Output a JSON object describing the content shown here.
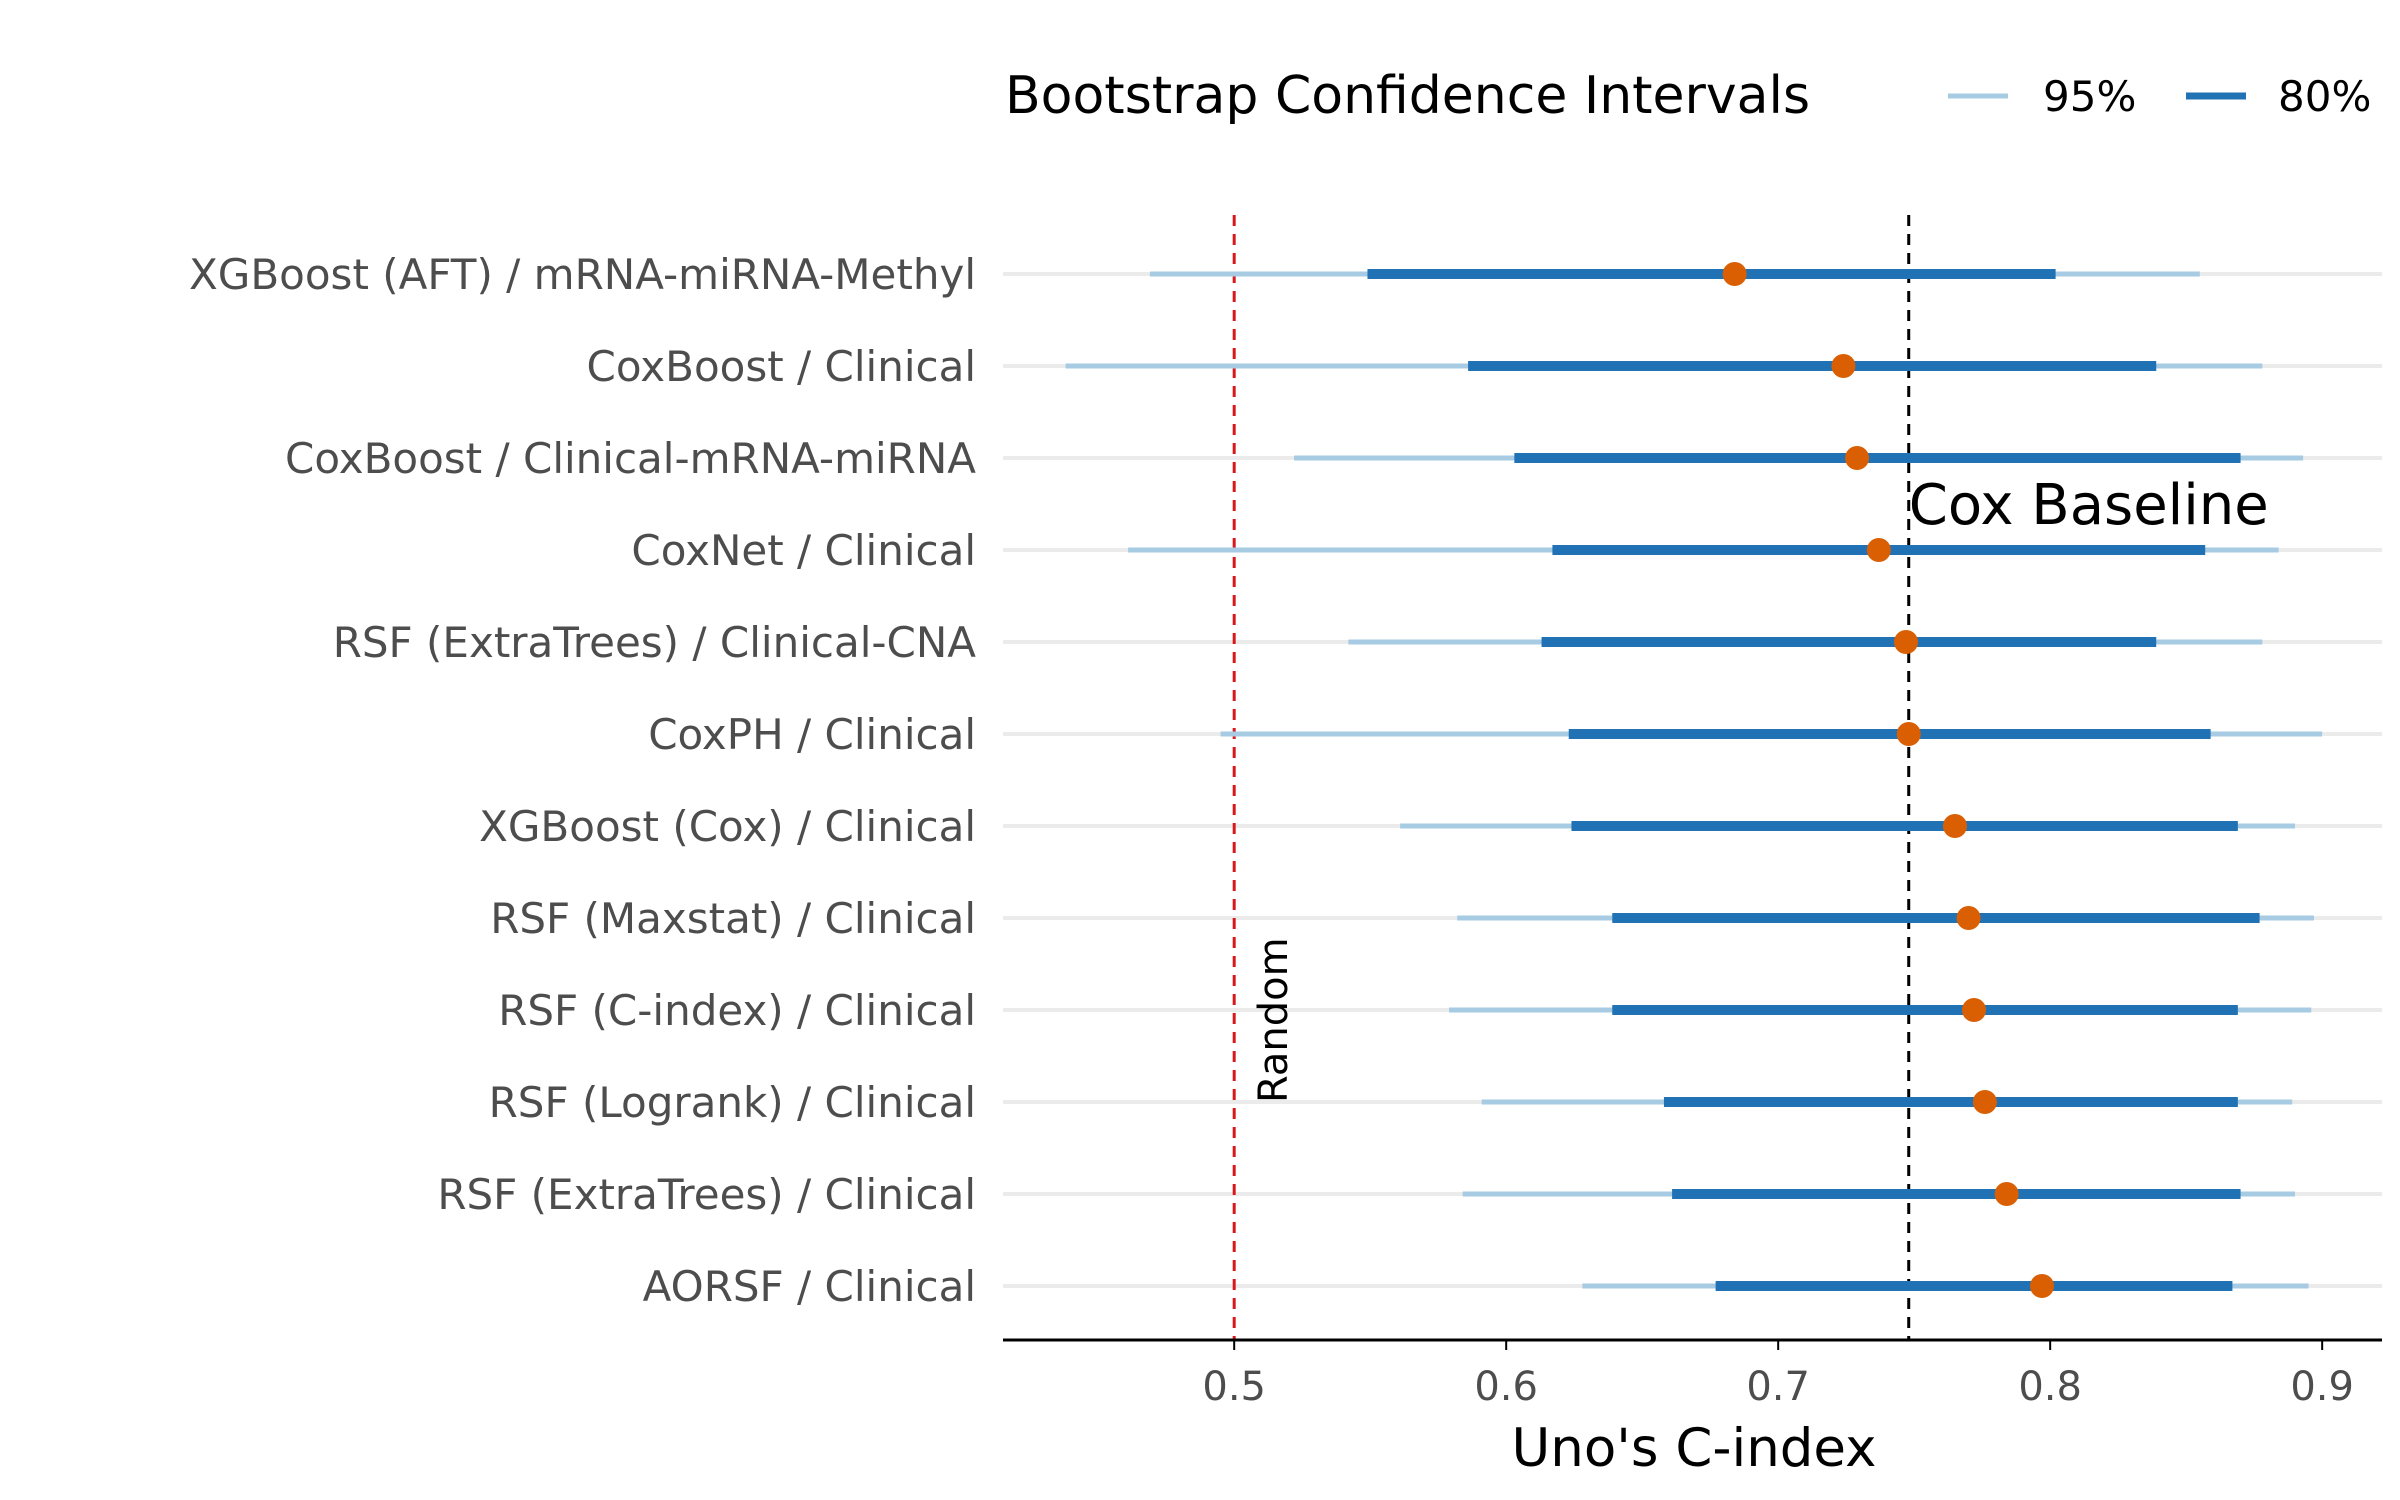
{
  "chart_data": {
    "type": "forest",
    "xlabel": "Uno's C-index",
    "xlim": [
      0.415,
      0.922
    ],
    "xticks": [
      0.5,
      0.6,
      0.7,
      0.8,
      0.9
    ],
    "xtick_labels": [
      "0.5",
      "0.6",
      "0.7",
      "0.8",
      "0.9"
    ],
    "legend": {
      "title": "Bootstrap Confidence Intervals",
      "position": "top",
      "entries": [
        {
          "label": "95%",
          "color": "#a6cbe3"
        },
        {
          "label": "80%",
          "color": "#2171b5"
        }
      ]
    },
    "reference_lines": [
      {
        "label": "Random",
        "x": 0.5,
        "color": "#d7191c",
        "style": "dashed"
      },
      {
        "label": "Cox Baseline",
        "x": 0.748,
        "color": "#000000",
        "style": "dashed"
      }
    ],
    "point_color": "#d95f02",
    "grid_color": "#ebebeb",
    "rows": [
      {
        "label": "XGBoost (AFT) / mRNA-miRNA-Methyl",
        "estimate": 0.684,
        "ci95": [
          0.469,
          0.855
        ],
        "ci80": [
          0.549,
          0.802
        ]
      },
      {
        "label": "CoxBoost / Clinical",
        "estimate": 0.724,
        "ci95": [
          0.438,
          0.878
        ],
        "ci80": [
          0.586,
          0.839
        ]
      },
      {
        "label": "CoxBoost / Clinical-mRNA-miRNA",
        "estimate": 0.729,
        "ci95": [
          0.522,
          0.893
        ],
        "ci80": [
          0.603,
          0.87
        ]
      },
      {
        "label": "CoxNet / Clinical",
        "estimate": 0.737,
        "ci95": [
          0.461,
          0.884
        ],
        "ci80": [
          0.617,
          0.857
        ]
      },
      {
        "label": "RSF (ExtraTrees) / Clinical-CNA",
        "estimate": 0.747,
        "ci95": [
          0.542,
          0.878
        ],
        "ci80": [
          0.613,
          0.839
        ]
      },
      {
        "label": "CoxPH / Clinical",
        "estimate": 0.748,
        "ci95": [
          0.495,
          0.9
        ],
        "ci80": [
          0.623,
          0.859
        ]
      },
      {
        "label": "XGBoost (Cox) / Clinical",
        "estimate": 0.765,
        "ci95": [
          0.561,
          0.89
        ],
        "ci80": [
          0.624,
          0.869
        ]
      },
      {
        "label": "RSF (Maxstat) / Clinical",
        "estimate": 0.77,
        "ci95": [
          0.582,
          0.897
        ],
        "ci80": [
          0.639,
          0.877
        ]
      },
      {
        "label": "RSF (C-index) / Clinical",
        "estimate": 0.772,
        "ci95": [
          0.579,
          0.896
        ],
        "ci80": [
          0.639,
          0.869
        ]
      },
      {
        "label": "RSF (Logrank) / Clinical",
        "estimate": 0.776,
        "ci95": [
          0.591,
          0.889
        ],
        "ci80": [
          0.658,
          0.869
        ]
      },
      {
        "label": "RSF (ExtraTrees) / Clinical",
        "estimate": 0.784,
        "ci95": [
          0.584,
          0.89
        ],
        "ci80": [
          0.661,
          0.87
        ]
      },
      {
        "label": "AORSF / Clinical",
        "estimate": 0.797,
        "ci95": [
          0.628,
          0.895
        ],
        "ci80": [
          0.677,
          0.867
        ]
      }
    ]
  }
}
